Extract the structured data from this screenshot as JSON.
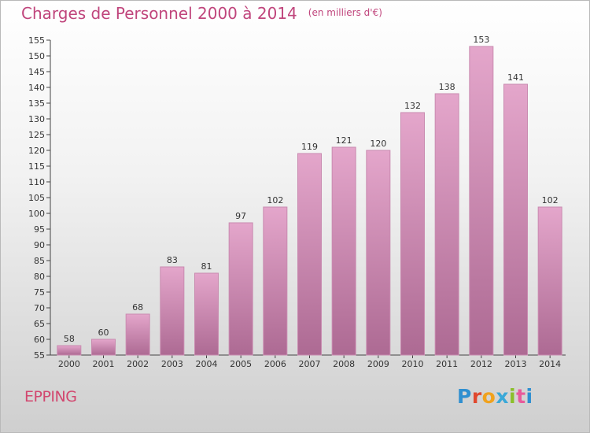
{
  "header": {
    "title": "Charges de Personnel 2000 à 2014",
    "unit": "(en milliers d'€)"
  },
  "footer": {
    "commune": "EPPING",
    "logo_text": "Proxiti"
  },
  "colors": {
    "title": "#c0457c",
    "bar_top": "#e4a6cb",
    "bar_bottom": "#ad6a93",
    "commune": "#d2476f"
  },
  "chart_data": {
    "type": "bar",
    "title": "Charges de Personnel 2000 à 2014",
    "subtitle": "(en milliers d'€)",
    "categories": [
      "2000",
      "2001",
      "2002",
      "2003",
      "2004",
      "2005",
      "2006",
      "2007",
      "2008",
      "2009",
      "2010",
      "2011",
      "2012",
      "2013",
      "2014"
    ],
    "values": [
      58,
      60,
      68,
      83,
      81,
      97,
      102,
      119,
      121,
      120,
      132,
      138,
      153,
      141,
      102
    ],
    "data_labels": [
      "58",
      "60",
      "68",
      "83",
      "81",
      "97",
      "102",
      "119",
      "121",
      "120",
      "132",
      "138",
      "153",
      "141",
      "102"
    ],
    "ylim": [
      55,
      155
    ],
    "yticks": [
      55,
      60,
      65,
      70,
      75,
      80,
      85,
      90,
      95,
      100,
      105,
      110,
      115,
      120,
      125,
      130,
      135,
      140,
      145,
      150,
      155
    ],
    "grid": false
  }
}
